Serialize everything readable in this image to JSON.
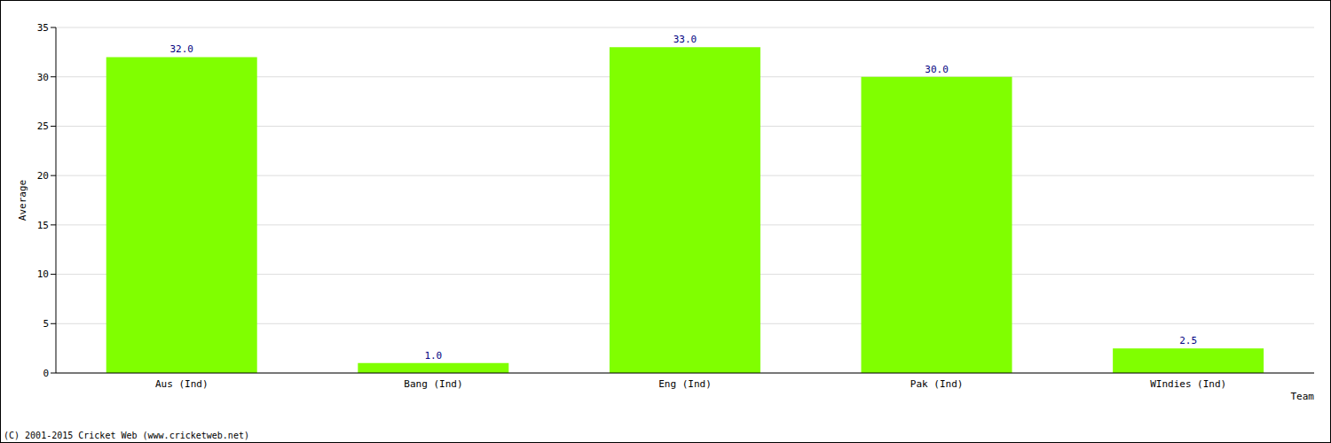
{
  "chart_data": {
    "type": "bar",
    "x_label": "Team",
    "y_label": "Average",
    "annotations": [
      "(C) 2001-2015 Cricket Web (www.cricketweb.net)"
    ],
    "categories": [
      "Aus (Ind)",
      "Bang (Ind)",
      "Eng (Ind)",
      "Pak (Ind)",
      "WIndies (Ind)"
    ],
    "values": [
      32,
      1,
      33,
      30,
      2.5
    ],
    "value_labels": [
      "32.0",
      "1.0",
      "33.0",
      "30.0",
      "2.5"
    ],
    "color": "#80ff00",
    "ylim": [
      0,
      35
    ],
    "yticks": [
      0,
      5,
      10,
      15,
      20,
      25,
      30,
      35
    ],
    "grid": true,
    "data_labels": true
  }
}
